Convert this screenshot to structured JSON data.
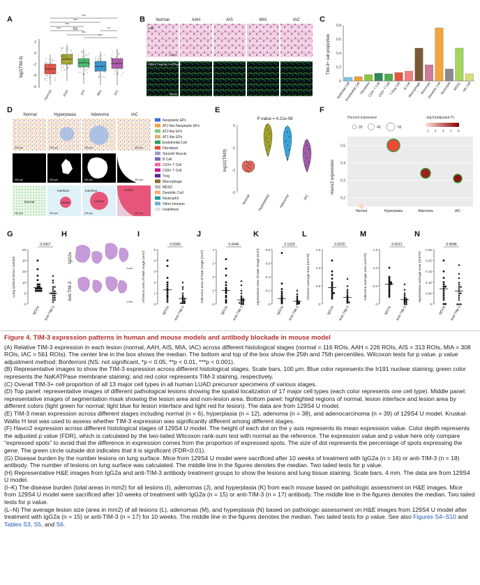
{
  "panels": {
    "A": "A",
    "B": "B",
    "C": "C",
    "D": "D",
    "E": "E",
    "F": "F",
    "G": "G",
    "H": "H",
    "I": "I",
    "J": "J",
    "K": "K",
    "L": "L",
    "M": "M",
    "N": "N"
  },
  "panelA": {
    "ylabel": "log2(TIM-3)",
    "categories": [
      "Normal",
      "AAH",
      "AIS",
      "MIA",
      "IAC"
    ],
    "sig": [
      "***",
      "***",
      "***",
      "NS",
      "***",
      "**",
      "***",
      "***"
    ],
    "yticks": [
      "2",
      "0",
      "-2",
      "-4",
      "-6"
    ]
  },
  "panelB": {
    "cols": [
      "Normal",
      "AAH",
      "AIS",
      "MIA",
      "IAC"
    ],
    "row1": "H&E",
    "row2": "TIM-3 / Na+/K+ ATPase",
    "scale": "100 μm"
  },
  "panelD": {
    "cols": [
      "Normal",
      "Hyperplasia",
      "Adenoma",
      "IAC"
    ],
    "scales": [
      "200 μm",
      "200 μm",
      "200 μm",
      "400 μm"
    ],
    "bottom_labels": [
      "Normal",
      "Interface",
      "Lesion",
      "Interface",
      "Lesion",
      "Lesion"
    ],
    "legend": [
      "Neoplastic EPs",
      "AT2 like Neoplastic EPs",
      "AT2 like EPs",
      "AT1 like EPs",
      "Endothelial Cell",
      "Fibroblast",
      "Smooth Muscle",
      "B Cell",
      "CD4+ T Cell",
      "CD8+ T Cell",
      "Treg",
      "Macrophage",
      "MDSC",
      "Dendritic Cell",
      "Neutrophil",
      "Other Immune",
      "Undefined"
    ],
    "legend_colors": [
      "#3b6fd6",
      "#f2a13a",
      "#7fc97f",
      "#d9b36c",
      "#2ca25f",
      "#e34a33",
      "#9e9ac8",
      "#756bb1",
      "#f768a1",
      "#c51b8a",
      "#54278f",
      "#8c6d31",
      "#bdbdbd",
      "#fdae6b",
      "#1b9e9a",
      "#6baed6",
      "#e0e0e0"
    ]
  },
  "chart_data": [
    {
      "panel": "C",
      "type": "bar",
      "ylabel": "TIM-3+ cell proportion",
      "categories": [
        "Epithelial Cell",
        "Endothelial Cell",
        "Fibroblast",
        "CD4+ T Cell",
        "CD8+ T Cell",
        "T Reg Cell",
        "B Cell",
        "Macrophage",
        "Monocyte",
        "Dendritic Cell",
        "Neutrophil",
        "MDSC",
        "NK Cell"
      ],
      "values": [
        0.05,
        0.06,
        0.09,
        0.11,
        0.1,
        0.12,
        0.14,
        0.47,
        0.23,
        0.76,
        0.17,
        0.47,
        0.1
      ],
      "colors": [
        "#7ec8e3",
        "#f0a030",
        "#8dc63f",
        "#2e8b57",
        "#4cae4c",
        "#e6553d",
        "#f08080",
        "#7a5a36",
        "#d07a9a",
        "#f2a63b",
        "#8a8a8a",
        "#a4d65e",
        "#d8dc7a"
      ],
      "yticks": [
        "0.8",
        "0.6",
        "0.4",
        "0.2",
        "0"
      ],
      "ylim": [
        0,
        0.8
      ]
    },
    {
      "panel": "E",
      "type": "violin",
      "title": "P-value = 4.21e-08",
      "ylabel": "log10(TIM3)",
      "categories": [
        "Normal",
        "Hyperplasia",
        "Adenoma",
        "IAC"
      ],
      "medians": [
        -1.8,
        -0.4,
        -0.5,
        -1.2
      ],
      "colors": [
        "#e0675a",
        "#a0a02a",
        "#3aa3d8",
        "#a05ca8"
      ],
      "yticks": [
        "0",
        "-1",
        "-2",
        "-3"
      ],
      "ylim": [
        -3,
        0
      ]
    },
    {
      "panel": "F",
      "type": "scatter",
      "ylabel": "Havcr2 expression",
      "legend_title_size": "Percent expressed",
      "size_ticks": [
        "20",
        "40",
        "55"
      ],
      "legend_title_color": "-log10(adjusted P)",
      "color_ticks": [
        "1",
        "2",
        "3",
        "4",
        "5"
      ],
      "categories": [
        "Normal",
        "Hyperplasia",
        "Adenoma",
        "IAC"
      ],
      "values": [
        0.15,
        0.5,
        0.34,
        0.31
      ],
      "yticks": [
        "0.5",
        "0.4",
        "0.3",
        "0.2"
      ],
      "ylim": [
        0.15,
        0.55
      ]
    },
    {
      "panel": "G",
      "type": "scatter",
      "ylabel": "Lung surface lesion number",
      "p": "0.0367",
      "groups": [
        "IgG2a",
        "Anti-TIM-3"
      ],
      "ylim": [
        0,
        25
      ],
      "yticks": [
        "25",
        "20",
        "15",
        "10",
        "5",
        "0"
      ],
      "a": [
        20,
        16,
        13,
        11,
        9,
        9,
        8,
        8,
        7,
        7,
        7,
        7,
        6,
        6,
        6,
        6
      ],
      "b": [
        13,
        11,
        10,
        8,
        8,
        7,
        6,
        6,
        5,
        5,
        5,
        4,
        4,
        3,
        3,
        2,
        2,
        1
      ]
    },
    {
      "panel": "I",
      "type": "scatter",
      "ylabel": "All lesion area of H&E image (mm²)",
      "p": "0.0390",
      "groups": [
        "IgG2a",
        "Anti-TIM-3"
      ],
      "ylim": [
        0,
        5
      ],
      "yticks": [
        "5",
        "4",
        "3",
        "2",
        "1",
        "0"
      ],
      "a": [
        4.0,
        3.5,
        2.4,
        2.0,
        1.8,
        1.6,
        1.4,
        1.3,
        1.2,
        1.0,
        0.8,
        0.7,
        0.6,
        0.4,
        0.2
      ],
      "b": [
        2.0,
        1.6,
        1.4,
        1.0,
        0.8,
        0.7,
        0.6,
        0.5,
        0.5,
        0.4,
        0.3,
        0.3,
        0.2,
        0.2,
        0.1,
        0.1,
        0.1
      ]
    },
    {
      "panel": "J",
      "type": "scatter",
      "ylabel": "Adenoma area of H&E image (mm²)",
      "p": "0.0445",
      "groups": [
        "IgG2a",
        "Anti-TIM-3"
      ],
      "ylim": [
        0,
        4
      ],
      "yticks": [
        "4",
        "3",
        "2",
        "1",
        "0"
      ],
      "a": [
        3.3,
        2.6,
        2.1,
        1.6,
        1.4,
        1.2,
        1.1,
        1.0,
        0.9,
        0.8,
        0.6,
        0.5,
        0.3,
        0.2,
        0.1
      ],
      "b": [
        1.7,
        1.4,
        1.0,
        0.8,
        0.6,
        0.5,
        0.4,
        0.4,
        0.3,
        0.3,
        0.2,
        0.2,
        0.1,
        0.1,
        0.1,
        0.0,
        0.0
      ]
    },
    {
      "panel": "K",
      "type": "scatter",
      "ylabel": "Hyperplasia area of H&E image (mm²)",
      "p": "0.1323",
      "groups": [
        "IgG2a",
        "Anti-TIM-3"
      ],
      "ylim": [
        0,
        0.8
      ],
      "yticks": [
        "0.8",
        "0.6",
        "0.4",
        "0.2",
        "0"
      ],
      "a": [
        0.75,
        0.3,
        0.22,
        0.18,
        0.15,
        0.12,
        0.1,
        0.08,
        0.07,
        0.06,
        0.05,
        0.04,
        0.03,
        0.02,
        0.01
      ],
      "b": [
        0.2,
        0.15,
        0.12,
        0.1,
        0.08,
        0.07,
        0.06,
        0.05,
        0.04,
        0.04,
        0.03,
        0.03,
        0.02,
        0.02,
        0.01,
        0.01,
        0.0
      ]
    },
    {
      "panel": "L",
      "type": "scatter",
      "ylabel": "All lesion average area (mm²/#)",
      "p": "0.0220",
      "groups": [
        "IgG2a",
        "Anti-TIM-3"
      ],
      "ylim": [
        0,
        1.5
      ],
      "yticks": [
        "1.5",
        "1.0",
        "0.5",
        "0"
      ],
      "a": [
        1.2,
        0.9,
        0.8,
        0.7,
        0.6,
        0.55,
        0.5,
        0.45,
        0.4,
        0.35,
        0.3,
        0.3,
        0.25,
        0.2,
        0.15
      ],
      "b": [
        0.7,
        0.5,
        0.4,
        0.35,
        0.3,
        0.25,
        0.22,
        0.2,
        0.18,
        0.15,
        0.14,
        0.12,
        0.1,
        0.08,
        0.06,
        0.05,
        0.04
      ]
    },
    {
      "panel": "M",
      "type": "scatter",
      "ylabel": "Adenoma average area (mm²/#)",
      "p": "0.0012",
      "groups": [
        "IgG2a",
        "Anti-TIM-3"
      ],
      "ylim": [
        0,
        1.5
      ],
      "yticks": [
        "1.5",
        "1.0",
        "0.5",
        "0"
      ],
      "a": [
        1.0,
        0.75,
        0.7,
        0.65,
        0.6,
        0.6,
        0.55,
        0.55,
        0.5,
        0.45,
        0.4,
        0.35,
        0.3,
        0.25,
        0.2
      ],
      "b": [
        0.55,
        0.4,
        0.3,
        0.25,
        0.2,
        0.18,
        0.15,
        0.15,
        0.12,
        0.1,
        0.1,
        0.08,
        0.06,
        0.05,
        0.04,
        0.0,
        0.0
      ]
    },
    {
      "panel": "N",
      "type": "scatter",
      "ylabel": "Hyperplasia average area (mm²/#)",
      "p": "0.9688",
      "groups": [
        "IgG2a",
        "Anti-TIM-3"
      ],
      "ylim": [
        0,
        0.25
      ],
      "yticks": [
        "0.25",
        "0.20",
        "0.15",
        "0.10",
        "0.05",
        "0"
      ],
      "a": [
        0.2,
        0.15,
        0.12,
        0.1,
        0.09,
        0.08,
        0.08,
        0.07,
        0.06,
        0.05,
        0.04,
        0.03,
        0.02,
        0.0,
        0.0
      ],
      "b": [
        0.18,
        0.14,
        0.12,
        0.1,
        0.09,
        0.08,
        0.08,
        0.07,
        0.06,
        0.05,
        0.05,
        0.04,
        0.03,
        0.02,
        0.0,
        0.0,
        0.0
      ]
    }
  ],
  "panelH": {
    "rows": [
      "IgG2a",
      "Anti-TIM-3"
    ],
    "scale": "4 mm"
  },
  "caption": {
    "heading": "Figure 4. TIM-3 expression patterns in human and mouse models and antibody blockade in mouse model",
    "A": "(A) Relative TIM-3 expression in each lesion (normal, AAH, AIS, MIA, IAC) across different histological stages (normal = 116 ROIs, AAH = 226 ROIs, AIS = 313 ROIs, MIA = 308 ROIs, IAC = 561 ROIs). The center line in the box shows the median. The bottom and top of the box show the 25th and 75th percentiles. Wilcoxon tests for p value. p value adjustment method: Bonferroni (NS: not significant, *p < 0.05, **p < 0.01, ***p < 0.001).",
    "B": "(B) Representative images to show the TIM-3 expression across different histological stages. Scale bars, 100 μm. Blue color represents the Ir191 nuclear staining; green color represents the NaKATPase membrane staining; and red color represents TIM-3 staining, respectively.",
    "C": "(C) Overall TIM-3+ cell proportion of all 13 major cell types in all human LUAD precursor specimens of various stages.",
    "D": "(D) Top panel: representative images of different pathological lesions showing the spatial localization of 17 major cell types (each color represents one cell type). Middle panel: representative images of segmentation mask showing the lesion area and non-lesion area. Bottom panel: highlighted regions of normal, lesion interface and lesion area by different colors (light green for normal; light blue for lesion interface and light red for lesion). The data are from 129S4 U model.",
    "E": "(E) TIM-3 mean expression across different stages including normal (n = 6), hyperplasia (n = 12), adenoma (n = 38), and adenocarcinoma (n = 39) of 129S4 U model. Kruskal-Wallis H test was used to assess whether TIM-3 expression was significantly different among different stages.",
    "F": "(F) Havcr2 expression across different histological stages of 129S4 U model. The height of each dot on the y axis represents its mean expression value. Color depth represents the adjusted p value (FDR), which is calculated by the two-tailed Wilcoxon rank-sum test with normal as the reference. The expression value and p value here only compare “expressed spots” to avoid that the difference in expression comes from the proportion of expressed spots. The size of dot represents the percentage of spots expressing the gene. The green circle outside dot indicates that it is significant (FDR<0.01).",
    "G": "(G) Disease burden by the number lesions on lung surface. Mice from 129S4 U model were sacrificed after 10 weeks of treatment with IgG2a (n = 16) or anti-TIM-3 (n = 18) antibody. The number of lesions on lung surface was calculated. The middle line in the figures denotes the median. Two tailed tests for p value.",
    "H": "(H) Representative H&E images from IgG2a and anti-TIM-3 antibody treatment groups to show the lesions and lung tissue staining. Scale bars, 4 mm. The data are from 129S4 U model.",
    "IK": "(I–K) The disease burden (total areas in mm2) for all lesions (I), adenomas (J), and hyperplasia (K) from each mouse based on pathologic assessment on H&E images. Mice from 129S4 U model were sacrificed after 10 weeks of treatment with IgG2a (n = 15) or anti-TIM-3 (n = 17) antibody. The middle line in the figures denotes the median. Two tailed tests for p value.",
    "LN": "(L–N) The average lesion size (area in mm2) of all lesions (L), adenomas (M), and hyperplasia (N) based on pathologic assessment on H&E images from 129S4 U model after treatment with IgG2a (n = 15) or anti-TIM-3 (n = 17) for 10 weeks. The middle line in the figures denotes the median. Two tailed tests for p value. See also",
    "see_links": "Figures S4–S10",
    "and": "and",
    "tables": "Tables S3, S5",
    "and2": "and",
    "s6": "S6."
  }
}
